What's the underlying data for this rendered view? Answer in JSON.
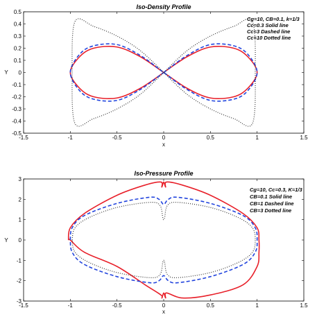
{
  "chart_data": [
    {
      "type": "line",
      "title": "Iso-Density Profile",
      "xlabel": "x",
      "ylabel": "Y",
      "xlim": [
        -1.5,
        1.5
      ],
      "ylim": [
        -0.5,
        0.5
      ],
      "xticks": [
        "-1.5",
        "-1",
        "-0.5",
        "0",
        "0.5",
        "1",
        "1.5"
      ],
      "yticks": [
        "0.5",
        "0.4",
        "0.3",
        "0.2",
        "0.1",
        "0",
        "-0.1",
        "-0.2",
        "-0.3",
        "-0.4",
        "-0.5"
      ],
      "grid": false,
      "legend_text": [
        "Cg=10, CB=0.1, k=1/3",
        "Cc=0.3 Solid line",
        "Cc=3 Dashed line",
        "Cc=10 Dotted line"
      ],
      "series": [
        {
          "color": "#e8202a",
          "style": "solid",
          "x": [
            0,
            0.25,
            0.5,
            0.75,
            0.9,
            1.0,
            0.9,
            0.75,
            0.5,
            0.25,
            0,
            -0.25,
            -0.5,
            -0.75,
            -0.9,
            -1.0,
            -0.9,
            -0.75,
            -0.5,
            -0.25,
            0
          ],
          "y": [
            0,
            0.13,
            0.21,
            0.2,
            0.13,
            0,
            -0.13,
            -0.2,
            -0.21,
            -0.13,
            0,
            0.13,
            0.21,
            0.2,
            0.13,
            0,
            -0.13,
            -0.2,
            -0.21,
            -0.13,
            0
          ]
        },
        {
          "color": "#2244dd",
          "style": "dashed",
          "x": [
            0,
            0.25,
            0.5,
            0.75,
            0.9,
            1.0,
            0.9,
            0.75,
            0.5,
            0.25,
            0,
            -0.25,
            -0.5,
            -0.75,
            -0.9,
            -1.0,
            -0.9,
            -0.75,
            -0.5,
            -0.25,
            0
          ],
          "y": [
            0,
            0.14,
            0.23,
            0.22,
            0.15,
            0,
            -0.15,
            -0.22,
            -0.23,
            -0.14,
            0,
            0.14,
            0.23,
            0.22,
            0.15,
            0,
            -0.15,
            -0.22,
            -0.23,
            -0.14,
            0
          ]
        },
        {
          "color": "#333333",
          "style": "dotted",
          "x": [
            0,
            -0.25,
            -0.5,
            -0.75,
            -0.95,
            -0.98,
            -0.95,
            -0.75,
            -0.5,
            -0.25,
            0,
            0.25,
            0.5,
            0.75,
            0.95,
            0.98,
            0.95,
            0.75,
            0.5,
            0.25,
            0
          ],
          "y": [
            0,
            0.18,
            0.3,
            0.38,
            0.42,
            0,
            -0.42,
            -0.38,
            -0.3,
            -0.18,
            0,
            0.18,
            0.3,
            0.38,
            0.42,
            0,
            -0.42,
            -0.38,
            -0.3,
            -0.18,
            0
          ]
        }
      ]
    },
    {
      "type": "line",
      "title": "Iso-Pressure Profile",
      "xlabel": "x",
      "ylabel": "Y",
      "xlim": [
        -1.5,
        1.5
      ],
      "ylim": [
        -3,
        3
      ],
      "xticks": [
        "-1.5",
        "-1",
        "-0.5",
        "0",
        "0.5",
        "1",
        "1.5"
      ],
      "yticks": [
        "3",
        "2",
        "1",
        "0",
        "-1",
        "-2",
        "-3"
      ],
      "grid": false,
      "legend_text": [
        "Cg=10, Cc=0.3, K=1/3",
        "CB=0.1 Solid line",
        "CB=1  Dashed line",
        "CB=3  Dotted line"
      ],
      "series": [
        {
          "color": "#e8202a",
          "style": "solid",
          "x": [
            -1.02,
            -1.0,
            -0.85,
            -0.5,
            -0.2,
            -0.03,
            -0.02,
            0,
            0.02,
            0.03,
            0.2,
            0.5,
            0.85,
            1.0,
            1.02,
            1.02,
            1.0,
            0.85,
            0.5,
            0.2,
            0.03,
            0.02,
            0,
            -0.02,
            -0.03,
            -0.2,
            -0.5,
            -0.85,
            -1.0,
            -1.02
          ],
          "y": [
            0,
            0.6,
            1.3,
            2.2,
            2.7,
            2.85,
            2.6,
            2.85,
            2.6,
            2.85,
            2.7,
            2.2,
            1.3,
            0.6,
            0,
            -0.6,
            -1.3,
            -2.2,
            -2.7,
            -2.85,
            -2.6,
            -2.85,
            -2.6,
            -2.85,
            -2.7,
            -2.2,
            -1.3,
            -0.6,
            0,
            0
          ]
        },
        {
          "color": "#2244dd",
          "style": "dashed",
          "x": [
            -1.0,
            -0.98,
            -0.85,
            -0.5,
            -0.15,
            -0.05,
            0,
            0.05,
            0.15,
            0.5,
            0.85,
            0.98,
            1.0,
            0.98,
            0.85,
            0.5,
            0.15,
            0.05,
            0,
            -0.05,
            -0.15,
            -0.5,
            -0.85,
            -0.98,
            -1.0
          ],
          "y": [
            0,
            0.6,
            1.2,
            1.8,
            2.1,
            2.0,
            1.75,
            2.0,
            2.1,
            1.8,
            1.2,
            0.6,
            0,
            -0.6,
            -1.2,
            -1.8,
            -2.1,
            -2.0,
            -1.75,
            -2.0,
            -2.1,
            -1.8,
            -1.2,
            -0.6,
            0
          ]
        },
        {
          "color": "#333333",
          "style": "dotted",
          "x": [
            -0.98,
            -0.95,
            -0.8,
            -0.5,
            -0.15,
            -0.04,
            -0.01,
            0,
            0.01,
            0.04,
            0.15,
            0.5,
            0.8,
            0.95,
            0.98,
            0.95,
            0.8,
            0.5,
            0.15,
            0.04,
            0.01,
            0,
            -0.01,
            -0.04,
            -0.15,
            -0.5,
            -0.8,
            -0.95,
            -0.98
          ],
          "y": [
            0,
            0.6,
            1.1,
            1.6,
            1.85,
            1.7,
            1.1,
            1.0,
            1.1,
            1.7,
            1.85,
            1.6,
            1.1,
            0.6,
            0,
            -0.6,
            -1.1,
            -1.6,
            -1.85,
            -1.7,
            -1.1,
            -1.0,
            -1.1,
            -1.7,
            -1.85,
            -1.6,
            -1.1,
            -0.6,
            0
          ]
        }
      ]
    }
  ]
}
